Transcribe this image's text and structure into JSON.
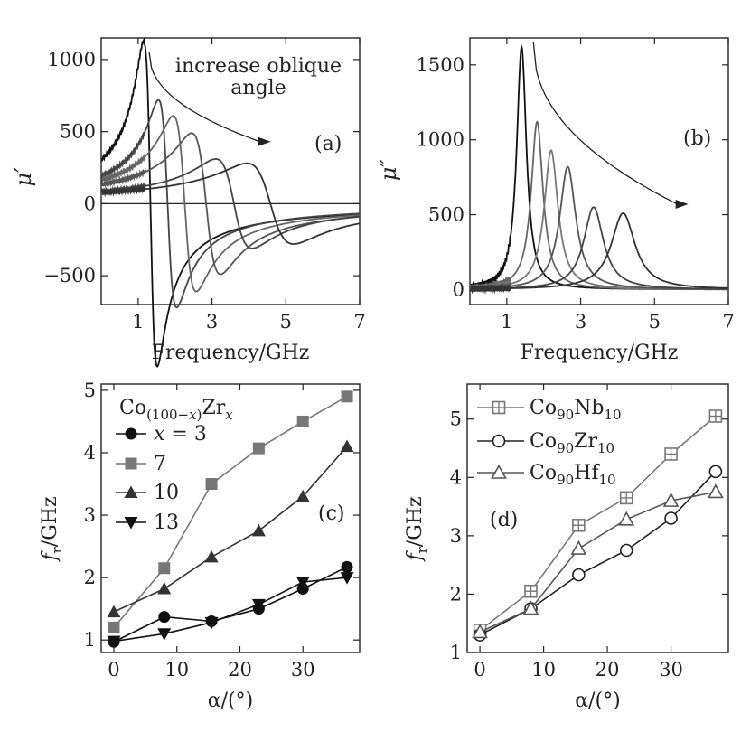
{
  "chart_data": [
    {
      "type": "line",
      "panel_label": "(a)",
      "xlabel": "Frequency/GHz",
      "ylabel": "μ′",
      "xlim": [
        0,
        7
      ],
      "ylim": [
        -700,
        1150
      ],
      "xticks": [
        1,
        3,
        5,
        7
      ],
      "yticks": [
        -500,
        0,
        500,
        1000
      ],
      "ytick_labels": [
        "−500",
        "0",
        "500",
        "1000"
      ],
      "annotation": [
        "increase oblique",
        "angle"
      ],
      "zero_line": true,
      "series": [
        {
          "fr": 1.15,
          "peak": 1130,
          "color": "#111111"
        },
        {
          "fr": 1.55,
          "peak": 720,
          "color": "#444444"
        },
        {
          "fr": 1.95,
          "peak": 610,
          "color": "#666666"
        },
        {
          "fr": 2.45,
          "peak": 490,
          "color": "#555555"
        },
        {
          "fr": 3.1,
          "peak": 310,
          "color": "#444444"
        },
        {
          "fr": 3.95,
          "peak": 280,
          "color": "#333333"
        }
      ]
    },
    {
      "type": "line",
      "panel_label": "(b)",
      "xlabel": "Frequency/GHz",
      "ylabel": "μ″",
      "xlim": [
        0,
        7
      ],
      "ylim": [
        -100,
        1680
      ],
      "xticks": [
        1,
        3,
        5,
        7
      ],
      "yticks": [
        0,
        500,
        1000,
        1500
      ],
      "series": [
        {
          "fr": 1.4,
          "peak": 1620,
          "color": "#111111"
        },
        {
          "fr": 1.82,
          "peak": 1120,
          "color": "#666666"
        },
        {
          "fr": 2.2,
          "peak": 930,
          "color": "#777777"
        },
        {
          "fr": 2.65,
          "peak": 820,
          "color": "#555555"
        },
        {
          "fr": 3.35,
          "peak": 550,
          "color": "#444444"
        },
        {
          "fr": 4.15,
          "peak": 510,
          "color": "#333333"
        }
      ]
    },
    {
      "type": "line",
      "panel_label": "(c)",
      "xlabel": "α/(°)",
      "ylabel": "f",
      "ylabel_sub": "r",
      "ylabel_unit": "/GHz",
      "xlim": [
        -2,
        39
      ],
      "ylim": [
        0.8,
        5.1
      ],
      "xticks": [
        0,
        10,
        20,
        30
      ],
      "yticks": [
        1,
        2,
        3,
        4,
        5
      ],
      "legend_title": "Co(100−x)Zrx",
      "legend_position": "top-left",
      "x": [
        0,
        8,
        15.5,
        23,
        30,
        37
      ],
      "series": [
        {
          "name": "x = 3",
          "marker": "circle",
          "color": "#111111",
          "values": [
            0.97,
            1.37,
            1.3,
            1.5,
            1.82,
            2.17
          ]
        },
        {
          "name": "7",
          "marker": "square",
          "color": "#777777",
          "values": [
            1.2,
            2.15,
            3.5,
            4.07,
            4.5,
            4.9
          ]
        },
        {
          "name": "10",
          "marker": "triangle-up",
          "color": "#333333",
          "values": [
            1.45,
            1.82,
            2.33,
            2.75,
            3.3,
            4.1
          ]
        },
        {
          "name": "13",
          "marker": "triangle-down",
          "color": "#111111",
          "values": [
            0.98,
            1.1,
            1.28,
            1.57,
            1.93,
            2.0
          ]
        }
      ]
    },
    {
      "type": "line",
      "panel_label": "(d)",
      "xlabel": "α/(°)",
      "ylabel": "f",
      "ylabel_sub": "r",
      "ylabel_unit": "/GHz",
      "xlim": [
        -2,
        39
      ],
      "ylim": [
        1,
        5.6
      ],
      "xticks": [
        0,
        10,
        20,
        30
      ],
      "yticks": [
        1,
        2,
        3,
        4,
        5
      ],
      "legend_position": "top-left",
      "x": [
        0,
        8,
        15.5,
        23,
        30,
        37
      ],
      "series": [
        {
          "name": "Co90Nb10",
          "base": "Co",
          "sub1": "90",
          "el": "Nb",
          "sub2": "10",
          "marker": "square-plus",
          "color": "#777777",
          "values": [
            1.38,
            2.05,
            3.18,
            3.65,
            4.4,
            5.05
          ]
        },
        {
          "name": "Co90Zr10",
          "base": "Co",
          "sub1": "90",
          "el": "Zr",
          "sub2": "10",
          "marker": "circle-open",
          "color": "#222222",
          "values": [
            1.3,
            1.75,
            2.33,
            2.75,
            3.3,
            4.1
          ]
        },
        {
          "name": "Co90Hf10",
          "base": "Co",
          "sub1": "90",
          "el": "Hf",
          "sub2": "10",
          "marker": "triangle-open",
          "color": "#555555",
          "values": [
            1.35,
            1.75,
            2.78,
            3.28,
            3.6,
            3.75
          ]
        }
      ]
    }
  ]
}
